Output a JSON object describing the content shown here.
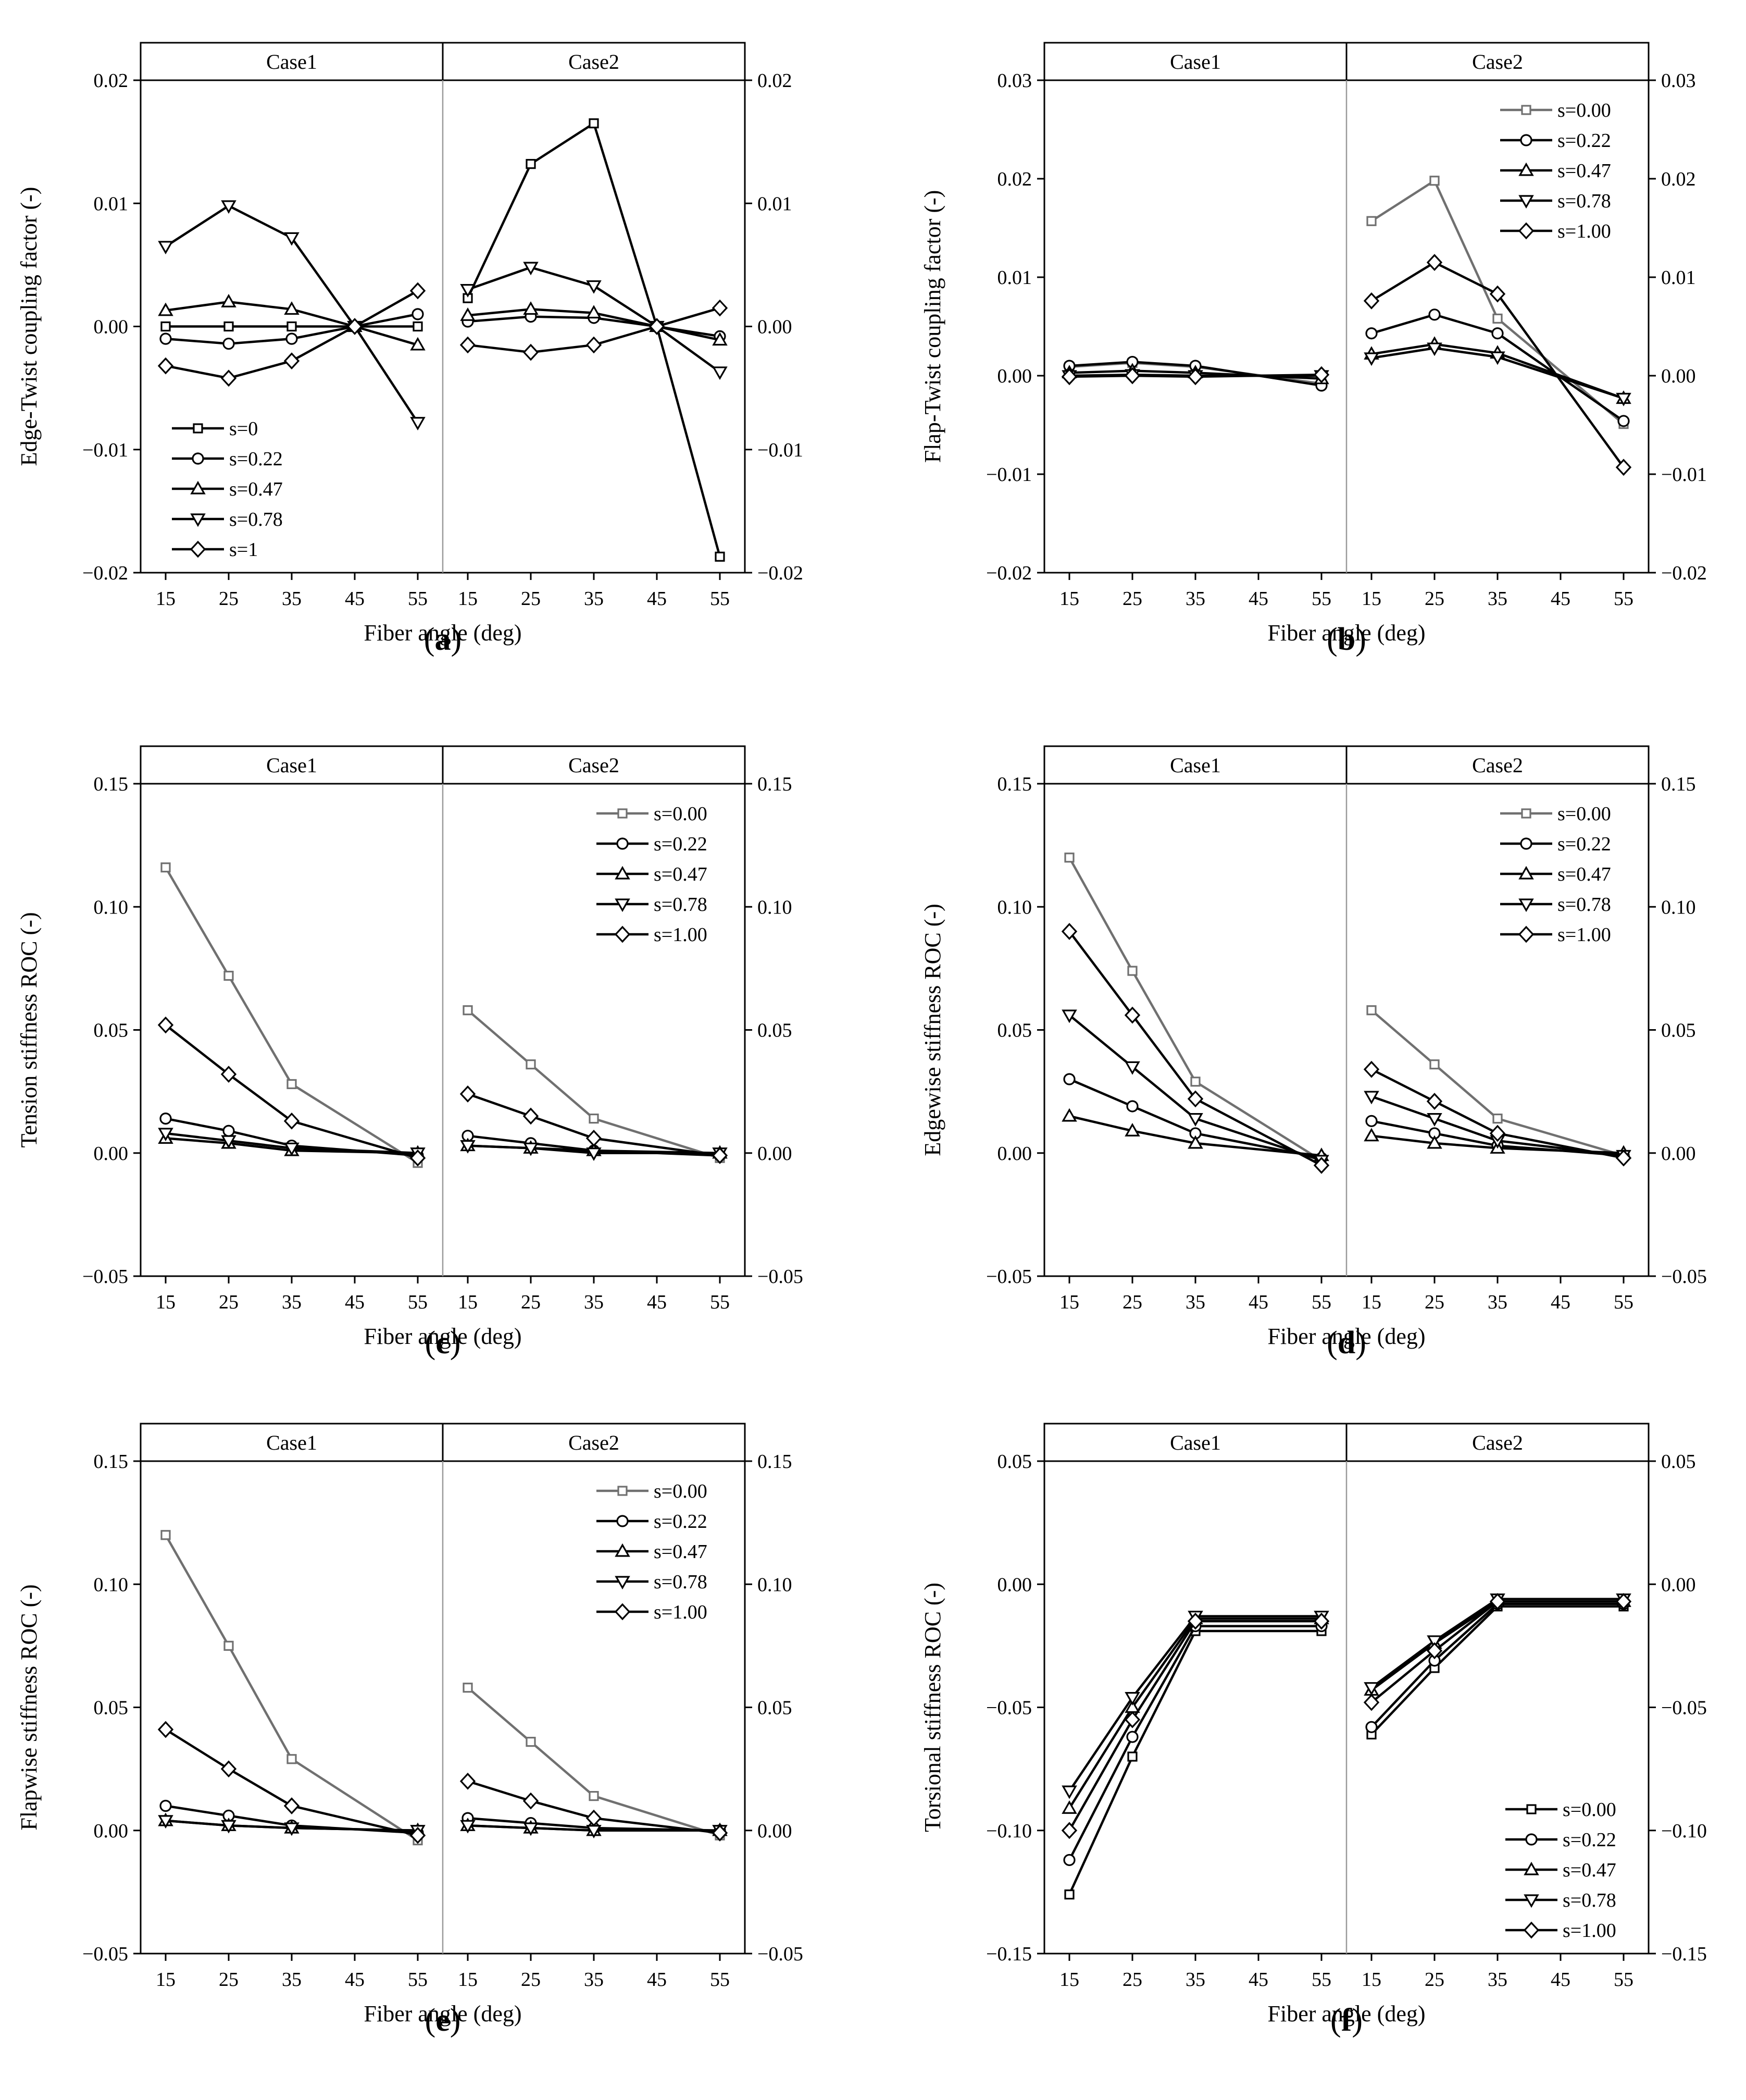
{
  "chart_data": [
    {
      "type": "line",
      "panel_label": "a",
      "ylabel": "Edge-Twist coupling factor  (-)",
      "xlabel": "Fiber angle (deg)",
      "ylim": [
        -0.02,
        0.02
      ],
      "yticks": [
        -0.02,
        -0.01,
        0.0,
        0.01,
        0.02
      ],
      "ytick_labels": [
        "−0.02",
        "−0.01",
        "0.00",
        "0.01",
        "0.02"
      ],
      "xticks": [
        15,
        25,
        35,
        45,
        55
      ],
      "xtick_labels": [
        "15",
        "25",
        "35",
        "45",
        "55"
      ],
      "facets": [
        "Case1",
        "Case2"
      ],
      "legend_position": "bottom-left",
      "series": [
        {
          "name": "s=0",
          "marker": "square",
          "color": "#000000",
          "case1": [
            0.0,
            0.0,
            0.0,
            0.0,
            0.0
          ],
          "case2": [
            0.0023,
            0.0132,
            0.0165,
            0.0,
            -0.0187
          ]
        },
        {
          "name": "s=0.22",
          "marker": "circle",
          "color": "#000000",
          "case1": [
            -0.001,
            -0.0014,
            -0.001,
            0.0,
            0.001
          ],
          "case2": [
            0.0004,
            0.0008,
            0.0007,
            0.0,
            -0.0008
          ]
        },
        {
          "name": "s=0.47",
          "marker": "triangle-up",
          "color": "#000000",
          "case1": [
            0.0013,
            0.002,
            0.0014,
            0.0,
            -0.0015
          ],
          "case2": [
            0.0009,
            0.0014,
            0.0011,
            0.0,
            -0.0011
          ]
        },
        {
          "name": "s=0.78",
          "marker": "triangle-down",
          "color": "#000000",
          "case1": [
            0.0065,
            0.0098,
            0.0072,
            0.0,
            -0.0078
          ],
          "case2": [
            0.003,
            0.0048,
            0.0033,
            0.0,
            -0.0037
          ]
        },
        {
          "name": "s=1",
          "marker": "diamond",
          "color": "#000000",
          "case1": [
            -0.0032,
            -0.0042,
            -0.0028,
            0.0,
            0.0029
          ],
          "case2": [
            -0.0015,
            -0.0021,
            -0.0015,
            0.0,
            0.0015
          ]
        }
      ]
    },
    {
      "type": "line",
      "panel_label": "b",
      "ylabel": "Flap-Twist coupling factor  (-)",
      "xlabel": "Fiber angle (deg)",
      "ylim": [
        -0.02,
        0.03
      ],
      "yticks": [
        -0.02,
        -0.01,
        0.0,
        0.01,
        0.02,
        0.03
      ],
      "ytick_labels": [
        "−0.02",
        "−0.01",
        "0.00",
        "0.01",
        "0.02",
        "0.03"
      ],
      "xticks": [
        15,
        25,
        35,
        45,
        55
      ],
      "xtick_labels": [
        "15",
        "25",
        "35",
        "45",
        "55"
      ],
      "facets": [
        "Case1",
        "Case2"
      ],
      "legend_position": "top-right",
      "series": [
        {
          "name": "s=0.00",
          "marker": "square",
          "color": "#707070",
          "case1": [
            0.0009,
            0.0013,
            0.0009,
            null,
            -0.0008
          ],
          "case2": [
            0.0157,
            0.0198,
            0.0058,
            null,
            -0.0049
          ]
        },
        {
          "name": "s=0.22",
          "marker": "circle",
          "color": "#000000",
          "case1": [
            0.001,
            0.0014,
            0.001,
            null,
            -0.001
          ],
          "case2": [
            0.0043,
            0.0062,
            0.0043,
            null,
            -0.0046
          ]
        },
        {
          "name": "s=0.47",
          "marker": "triangle-up",
          "color": "#000000",
          "case1": [
            0.0003,
            0.0005,
            0.0003,
            null,
            -0.0003
          ],
          "case2": [
            0.0022,
            0.0032,
            0.0023,
            null,
            -0.0023
          ]
        },
        {
          "name": "s=0.78",
          "marker": "triangle-down",
          "color": "#000000",
          "case1": [
            0.0,
            0.0001,
            0.0,
            null,
            0.0
          ],
          "case2": [
            0.0018,
            0.0028,
            0.0019,
            null,
            -0.0023
          ]
        },
        {
          "name": "s=1.00",
          "marker": "diamond",
          "color": "#000000",
          "case1": [
            -0.0001,
            0.0,
            -0.0001,
            null,
            0.0001
          ],
          "case2": [
            0.0076,
            0.0115,
            0.0083,
            null,
            -0.0093
          ]
        }
      ]
    },
    {
      "type": "line",
      "panel_label": "c",
      "ylabel": "Tension stiffness ROC (-)",
      "xlabel": "Fiber angle (deg)",
      "ylim": [
        -0.05,
        0.15
      ],
      "yticks": [
        -0.05,
        0.0,
        0.05,
        0.1,
        0.15
      ],
      "ytick_labels": [
        "−0.05",
        "0.00",
        "0.05",
        "0.10",
        "0.15"
      ],
      "xticks": [
        15,
        25,
        35,
        45,
        55
      ],
      "xtick_labels": [
        "15",
        "25",
        "35",
        "45",
        "55"
      ],
      "facets": [
        "Case1",
        "Case2"
      ],
      "legend_position": "top-right",
      "series": [
        {
          "name": "s=0.00",
          "marker": "square",
          "color": "#707070",
          "case1": [
            0.116,
            0.072,
            0.028,
            null,
            -0.004
          ],
          "case2": [
            0.058,
            0.036,
            0.014,
            null,
            -0.002
          ]
        },
        {
          "name": "s=0.22",
          "marker": "circle",
          "color": "#000000",
          "case1": [
            0.014,
            0.009,
            0.003,
            null,
            -0.001
          ],
          "case2": [
            0.007,
            0.004,
            0.001,
            null,
            -0.001
          ]
        },
        {
          "name": "s=0.47",
          "marker": "triangle-up",
          "color": "#000000",
          "case1": [
            0.006,
            0.004,
            0.001,
            null,
            0.0
          ],
          "case2": [
            0.003,
            0.002,
            0.001,
            null,
            0.0
          ]
        },
        {
          "name": "s=0.78",
          "marker": "triangle-down",
          "color": "#000000",
          "case1": [
            0.008,
            0.005,
            0.002,
            null,
            0.0
          ],
          "case2": [
            0.003,
            0.002,
            0.0,
            null,
            0.0
          ]
        },
        {
          "name": "s=1.00",
          "marker": "diamond",
          "color": "#000000",
          "case1": [
            0.052,
            0.032,
            0.013,
            null,
            -0.002
          ],
          "case2": [
            0.024,
            0.015,
            0.006,
            null,
            -0.001
          ]
        }
      ]
    },
    {
      "type": "line",
      "panel_label": "d",
      "ylabel": "Edgewise stiffness ROC (-)",
      "xlabel": "Fiber angle (deg)",
      "ylim": [
        -0.05,
        0.15
      ],
      "yticks": [
        -0.05,
        0.0,
        0.05,
        0.1,
        0.15
      ],
      "ytick_labels": [
        "−0.05",
        "0.00",
        "0.05",
        "0.10",
        "0.15"
      ],
      "xticks": [
        15,
        25,
        35,
        45,
        55
      ],
      "xtick_labels": [
        "15",
        "25",
        "35",
        "45",
        "55"
      ],
      "facets": [
        "Case1",
        "Case2"
      ],
      "legend_position": "top-right",
      "series": [
        {
          "name": "s=0.00",
          "marker": "square",
          "color": "#707070",
          "case1": [
            0.12,
            0.074,
            0.029,
            null,
            -0.003
          ],
          "case2": [
            0.058,
            0.036,
            0.014,
            null,
            -0.001
          ]
        },
        {
          "name": "s=0.22",
          "marker": "circle",
          "color": "#000000",
          "case1": [
            0.03,
            0.019,
            0.008,
            null,
            -0.002
          ],
          "case2": [
            0.013,
            0.008,
            0.003,
            null,
            -0.001
          ]
        },
        {
          "name": "s=0.47",
          "marker": "triangle-up",
          "color": "#000000",
          "case1": [
            0.015,
            0.009,
            0.004,
            null,
            -0.001
          ],
          "case2": [
            0.007,
            0.004,
            0.002,
            null,
            0.0
          ]
        },
        {
          "name": "s=0.78",
          "marker": "triangle-down",
          "color": "#000000",
          "case1": [
            0.056,
            0.035,
            0.014,
            null,
            -0.003
          ],
          "case2": [
            0.023,
            0.014,
            0.005,
            null,
            -0.001
          ]
        },
        {
          "name": "s=1.00",
          "marker": "diamond",
          "color": "#000000",
          "case1": [
            0.09,
            0.056,
            0.022,
            null,
            -0.005
          ],
          "case2": [
            0.034,
            0.021,
            0.008,
            null,
            -0.002
          ]
        }
      ]
    },
    {
      "type": "line",
      "panel_label": "e",
      "ylabel": "Flapwise stiffness ROC (-)",
      "xlabel": "Fiber angle (deg)",
      "ylim": [
        -0.05,
        0.15
      ],
      "yticks": [
        -0.05,
        0.0,
        0.05,
        0.1,
        0.15
      ],
      "ytick_labels": [
        "−0.05",
        "0.00",
        "0.05",
        "0.10",
        "0.15"
      ],
      "xticks": [
        15,
        25,
        35,
        45,
        55
      ],
      "xtick_labels": [
        "15",
        "25",
        "35",
        "45",
        "55"
      ],
      "facets": [
        "Case1",
        "Case2"
      ],
      "legend_position": "top-right",
      "series": [
        {
          "name": "s=0.00",
          "marker": "square",
          "color": "#707070",
          "case1": [
            0.12,
            0.075,
            0.029,
            null,
            -0.004
          ],
          "case2": [
            0.058,
            0.036,
            0.014,
            null,
            -0.002
          ]
        },
        {
          "name": "s=0.22",
          "marker": "circle",
          "color": "#000000",
          "case1": [
            0.01,
            0.006,
            0.002,
            null,
            -0.001
          ],
          "case2": [
            0.005,
            0.003,
            0.001,
            null,
            0.0
          ]
        },
        {
          "name": "s=0.47",
          "marker": "triangle-up",
          "color": "#000000",
          "case1": [
            0.004,
            0.002,
            0.001,
            null,
            0.0
          ],
          "case2": [
            0.002,
            0.001,
            0.0,
            null,
            0.0
          ]
        },
        {
          "name": "s=0.78",
          "marker": "triangle-down",
          "color": "#000000",
          "case1": [
            0.004,
            0.002,
            0.001,
            null,
            0.0
          ],
          "case2": [
            0.002,
            0.001,
            0.0,
            null,
            0.0
          ]
        },
        {
          "name": "s=1.00",
          "marker": "diamond",
          "color": "#000000",
          "case1": [
            0.041,
            0.025,
            0.01,
            null,
            -0.002
          ],
          "case2": [
            0.02,
            0.012,
            0.005,
            null,
            -0.001
          ]
        }
      ]
    },
    {
      "type": "line",
      "panel_label": "f",
      "ylabel": "Torsional stiffness ROC (-)",
      "xlabel": "Fiber angle (deg)",
      "ylim": [
        -0.15,
        0.05
      ],
      "yticks": [
        -0.15,
        -0.1,
        -0.05,
        0.0,
        0.05
      ],
      "ytick_labels": [
        "−0.15",
        "−0.10",
        "−0.05",
        "0.00",
        "0.05"
      ],
      "xticks": [
        15,
        25,
        35,
        45,
        55
      ],
      "xtick_labels": [
        "15",
        "25",
        "35",
        "45",
        "55"
      ],
      "facets": [
        "Case1",
        "Case2"
      ],
      "legend_position": "bottom-right",
      "series": [
        {
          "name": "s=0.00",
          "marker": "square",
          "color": "#000000",
          "case1": [
            -0.126,
            -0.07,
            -0.019,
            null,
            -0.019
          ],
          "case2": [
            -0.061,
            -0.034,
            -0.009,
            null,
            -0.009
          ]
        },
        {
          "name": "s=0.22",
          "marker": "circle",
          "color": "#000000",
          "case1": [
            -0.112,
            -0.062,
            -0.017,
            null,
            -0.017
          ],
          "case2": [
            -0.058,
            -0.031,
            -0.008,
            null,
            -0.008
          ]
        },
        {
          "name": "s=0.47",
          "marker": "triangle-up",
          "color": "#000000",
          "case1": [
            -0.091,
            -0.05,
            -0.014,
            null,
            -0.014
          ],
          "case2": [
            -0.043,
            -0.024,
            -0.007,
            null,
            -0.007
          ]
        },
        {
          "name": "s=0.78",
          "marker": "triangle-down",
          "color": "#000000",
          "case1": [
            -0.084,
            -0.046,
            -0.013,
            null,
            -0.013
          ],
          "case2": [
            -0.042,
            -0.023,
            -0.006,
            null,
            -0.006
          ]
        },
        {
          "name": "s=1.00",
          "marker": "diamond",
          "color": "#000000",
          "case1": [
            -0.1,
            -0.055,
            -0.015,
            null,
            -0.015
          ],
          "case2": [
            -0.048,
            -0.027,
            -0.007,
            null,
            -0.007
          ]
        }
      ]
    }
  ]
}
